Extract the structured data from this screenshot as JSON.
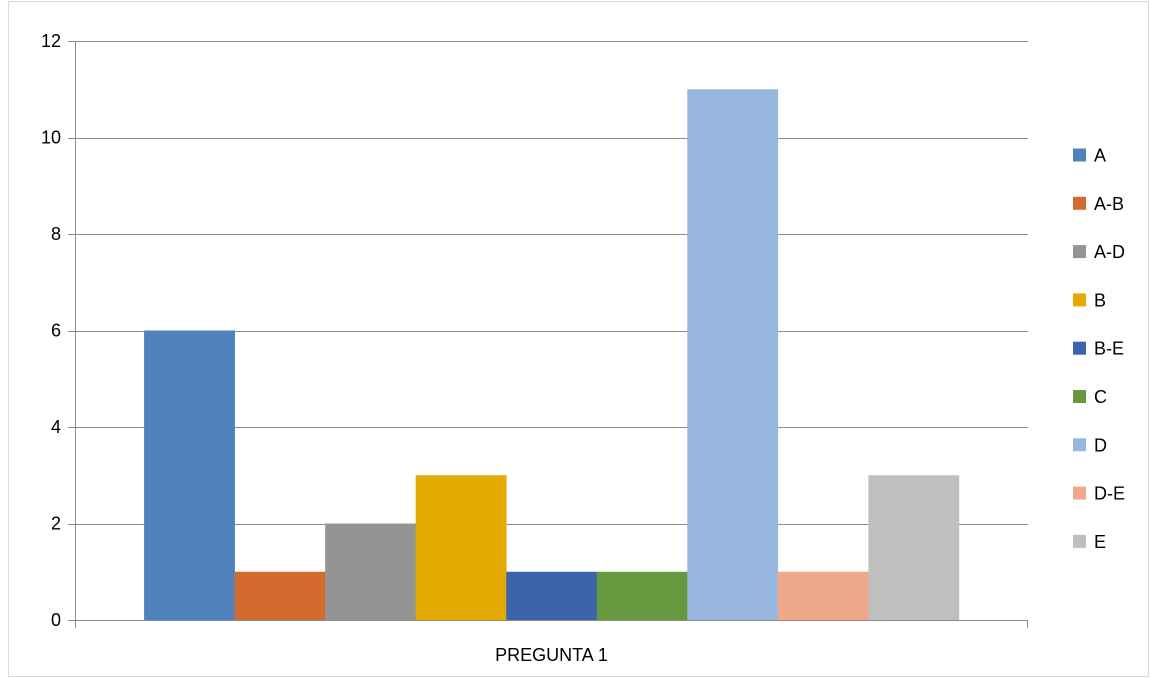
{
  "chart_data": {
    "type": "bar",
    "categories": [
      "PREGUNTA 1"
    ],
    "series": [
      {
        "name": "A",
        "values": [
          6
        ],
        "color": "#4F81BD"
      },
      {
        "name": "A-B",
        "values": [
          1
        ],
        "color": "#D46B2E"
      },
      {
        "name": "A-D",
        "values": [
          2
        ],
        "color": "#949494"
      },
      {
        "name": "B",
        "values": [
          3
        ],
        "color": "#E3AA00"
      },
      {
        "name": "B-E",
        "values": [
          1
        ],
        "color": "#3B64AD"
      },
      {
        "name": "C",
        "values": [
          1
        ],
        "color": "#66993F"
      },
      {
        "name": "D",
        "values": [
          11
        ],
        "color": "#97B7DE"
      },
      {
        "name": "D-E",
        "values": [
          1
        ],
        "color": "#F0A88B"
      },
      {
        "name": "E",
        "values": [
          3
        ],
        "color": "#BFBFBF"
      }
    ],
    "title": "",
    "xlabel": "",
    "ylabel": "",
    "ylim": [
      0,
      12
    ],
    "yticks": [
      0,
      2,
      4,
      6,
      8,
      10,
      12
    ],
    "grid": true,
    "legend_position": "right"
  }
}
